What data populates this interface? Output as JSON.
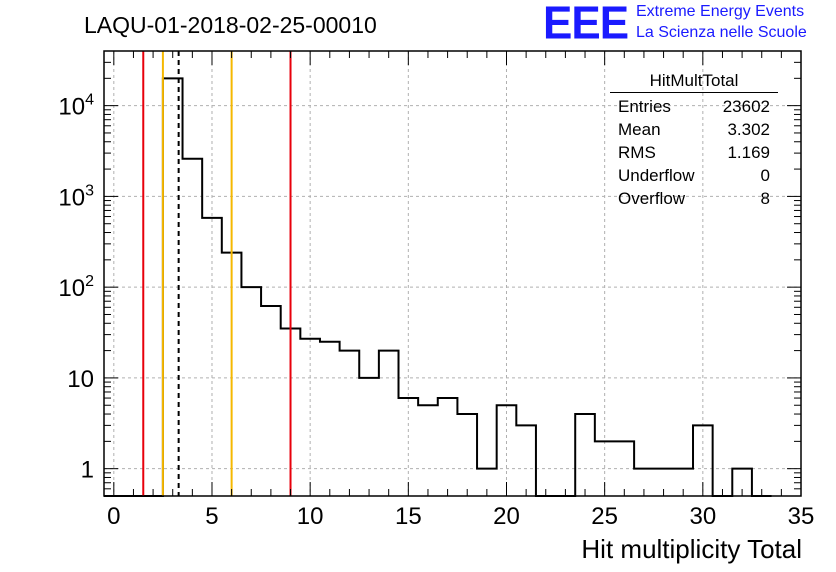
{
  "header": {
    "title": "LAQU-01-2018-02-25-00010"
  },
  "logo": {
    "mark": "EEE",
    "line1": "Extreme Energy Events",
    "line2": "La Scienza nelle Scuole",
    "color": "#1a1aff"
  },
  "stats": {
    "title": "HitMultTotal",
    "rows": [
      {
        "label": "Entries",
        "value": "23602"
      },
      {
        "label": "Mean",
        "value": "3.302"
      },
      {
        "label": "RMS",
        "value": "1.169"
      },
      {
        "label": "Underflow",
        "value": "0"
      },
      {
        "label": "Overflow",
        "value": "8"
      }
    ]
  },
  "chart_data": {
    "type": "histogram",
    "title": "LAQU-01-2018-02-25-00010",
    "xlabel": "Hit multiplicity Total",
    "ylabel": "",
    "xlim": [
      -0.5,
      35.0
    ],
    "ylim": [
      0.5,
      40000
    ],
    "yscale": "log",
    "grid": true,
    "bin_edges_start": -0.5,
    "bin_width": 1,
    "counts": [
      0,
      0,
      0,
      20000,
      2600,
      580,
      240,
      100,
      62,
      35,
      27,
      25,
      20,
      10,
      20,
      6,
      5,
      6,
      4,
      1,
      5,
      3,
      0,
      0,
      4,
      2,
      2,
      1,
      1,
      1,
      3,
      0,
      1,
      0
    ],
    "x_ticks": [
      0,
      5,
      10,
      15,
      20,
      25,
      30,
      35
    ],
    "x_tick_labels": [
      "0",
      "5",
      "10",
      "15",
      "20",
      "25",
      "30",
      "35"
    ],
    "y_ticks": [
      1,
      10,
      100,
      1000,
      10000
    ],
    "y_tick_labels": [
      {
        "base": "1",
        "exp": ""
      },
      {
        "base": "10",
        "exp": ""
      },
      {
        "base": "10",
        "exp": "2"
      },
      {
        "base": "10",
        "exp": "3"
      },
      {
        "base": "10",
        "exp": "4"
      }
    ],
    "vertical_lines": [
      {
        "x": 1.5,
        "color": "#e8000b",
        "style": "solid",
        "name": "red-line-left"
      },
      {
        "x": 2.5,
        "color": "#f5b800",
        "style": "solid",
        "name": "yellow-line-left"
      },
      {
        "x": 3.302,
        "color": "#000000",
        "style": "dashed",
        "name": "mean-dashed-line"
      },
      {
        "x": 6.0,
        "color": "#f5b800",
        "style": "solid",
        "name": "yellow-line-right"
      },
      {
        "x": 9.0,
        "color": "#e8000b",
        "style": "solid",
        "name": "red-line-right"
      }
    ]
  }
}
